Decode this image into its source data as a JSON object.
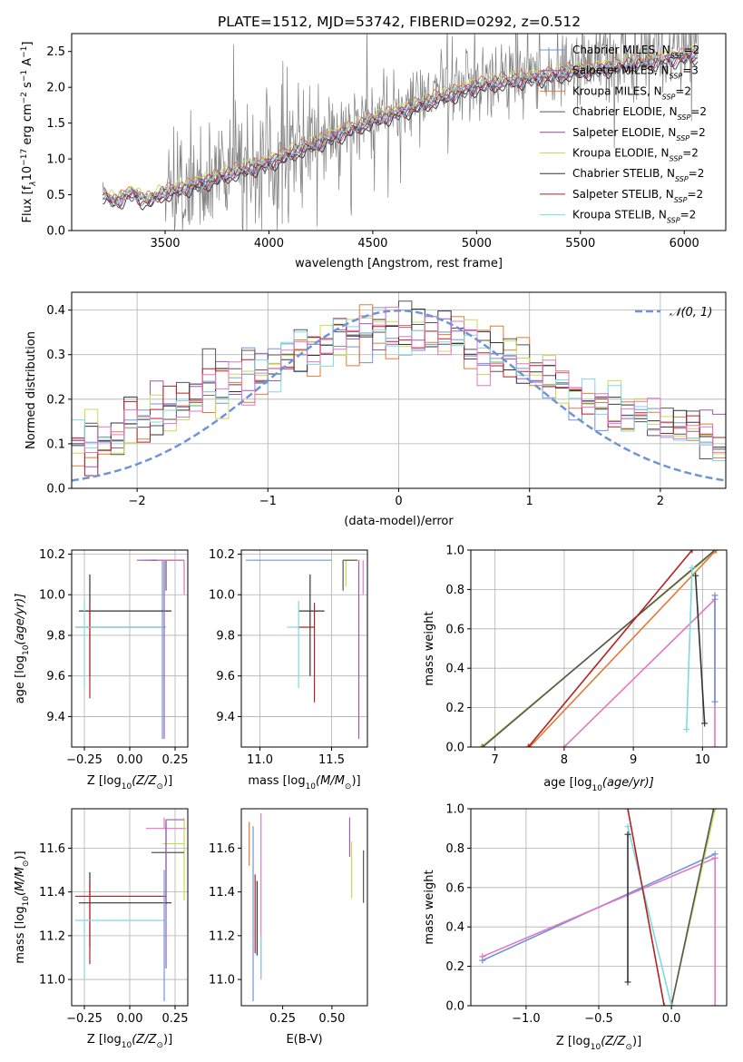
{
  "figure": {
    "title": "PLATE=1512, MJD=53742, FIBERID=0292, z=0.512"
  },
  "colors": {
    "chabrier_miles": "#6f95d8",
    "salpeter_miles": "#9b59b6",
    "kroupa_miles": "#e07b39",
    "chabrier_elodie": "#555555",
    "salpeter_elodie": "#8e44ad",
    "kroupa_elodie": "#c8dc52",
    "chabrier_stelib": "#333333",
    "salpeter_stelib": "#b22222",
    "kroupa_stelib": "#80d8e0",
    "pink": "#e377c2",
    "data": "#808080",
    "normal": "#6f95d8"
  },
  "chart_data": [
    {
      "id": "spectrum",
      "type": "line",
      "xlabel": "wavelength [Angstrom, rest frame]",
      "ylabel": "Flux [f",
      "ylabel_tail": "10",
      "ylabel_exp": "−17",
      "ylabel_unit": " erg cm",
      "ylabel_unit_exp1": "−2",
      "ylabel_unit2": " s",
      "ylabel_unit_exp2": "−1",
      "ylabel_unit3": " A",
      "ylabel_unit_exp3": "−1",
      "ylabel_end": "]",
      "xlim": [
        3050,
        6200
      ],
      "ylim": [
        0,
        2.75
      ],
      "xticks": [
        3500,
        4000,
        4500,
        5000,
        5500,
        6000
      ],
      "yticks": [
        0.0,
        0.5,
        1.0,
        1.5,
        2.0,
        2.5
      ],
      "data_range": [
        3200,
        6070
      ],
      "legend_position": "upper right",
      "legend": [
        {
          "label": "Chabrier MILES, N",
          "sub": "SSP",
          "tail": "=2",
          "color_key": "chabrier_miles"
        },
        {
          "label": "Salpeter MILES, N",
          "sub": "SSP",
          "tail": "=3",
          "color_key": "salpeter_miles"
        },
        {
          "label": "Kroupa MILES, N",
          "sub": "SSP",
          "tail": "=2",
          "color_key": "kroupa_miles"
        },
        {
          "label": "Chabrier ELODIE, N",
          "sub": "SSP",
          "tail": "=2",
          "color_key": "chabrier_elodie"
        },
        {
          "label": "Salpeter ELODIE, N",
          "sub": "SSP",
          "tail": "=2",
          "color_key": "salpeter_elodie"
        },
        {
          "label": "Kroupa ELODIE, N",
          "sub": "SSP",
          "tail": "=2",
          "color_key": "kroupa_elodie"
        },
        {
          "label": "Chabrier STELIB, N",
          "sub": "SSP",
          "tail": "=2",
          "color_key": "chabrier_stelib"
        },
        {
          "label": "Salpeter STELIB, N",
          "sub": "SSP",
          "tail": "=2",
          "color_key": "salpeter_stelib"
        },
        {
          "label": "Kroupa STELIB, N",
          "sub": "SSP",
          "tail": "=2",
          "color_key": "kroupa_stelib"
        }
      ]
    },
    {
      "id": "residuals",
      "type": "histogram",
      "xlabel": "(data-model)/error",
      "ylabel": "Normed distribution",
      "xlim": [
        -2.5,
        2.5
      ],
      "ylim": [
        0,
        0.44
      ],
      "xticks": [
        -2,
        -1,
        0,
        1,
        2
      ],
      "yticks": [
        0.0,
        0.1,
        0.2,
        0.3,
        0.4
      ],
      "grid": true,
      "legend_position": "upper right",
      "legend_label": "𝒩(0, 1)",
      "approx_bin_count": 50
    },
    {
      "id": "age_vs_Z",
      "type": "error_bars",
      "xlabel": "Z [log",
      "xlabel_sub": "10",
      "xlabel_tail": "(Z/Z",
      "xlabel_end": ")]",
      "ylabel": "age  [log",
      "ylabel_sub": "10",
      "ylabel_tail": "(age/yr)]",
      "xlim": [
        -0.32,
        0.32
      ],
      "ylim": [
        9.25,
        10.22
      ],
      "xticks": [
        -0.25,
        0.0,
        0.25
      ],
      "yticks": [
        9.4,
        9.6,
        9.8,
        10.0,
        10.2
      ],
      "grid": true,
      "points": [
        {
          "x": 0.18,
          "xerr": [
            0.1,
            0.12
          ],
          "y": 10.17,
          "yerr": [
            0.88,
            0.0
          ],
          "color_key": "chabrier_miles"
        },
        {
          "x": 0.3,
          "xerr": [
            0.12,
            0.0
          ],
          "y": 10.17,
          "yerr": [
            0.15,
            0.0
          ],
          "color_key": "kroupa_elodie"
        },
        {
          "x": 0.2,
          "xerr": [
            0.08,
            0.1
          ],
          "y": 10.17,
          "yerr": [
            0.15,
            0.0
          ],
          "color_key": "chabrier_elodie"
        },
        {
          "x": -0.22,
          "xerr": [
            0.06,
            0.45
          ],
          "y": 9.92,
          "yerr": [
            0.32,
            0.18
          ],
          "color_key": "chabrier_stelib"
        },
        {
          "x": -0.22,
          "xerr": [
            0.08,
            0.42
          ],
          "y": 9.84,
          "yerr": [
            0.35,
            0.12
          ],
          "color_key": "salpeter_stelib"
        },
        {
          "x": -0.25,
          "xerr": [
            0.05,
            0.45
          ],
          "y": 9.84,
          "yerr": [
            0.3,
            0.13
          ],
          "color_key": "kroupa_stelib"
        },
        {
          "x": 0.19,
          "xerr": [
            0.15,
            0.0
          ],
          "y": 10.17,
          "yerr": [
            0.88,
            0.0
          ],
          "color_key": "salpeter_miles"
        },
        {
          "x": 0.3,
          "xerr": [
            0.15,
            0.0
          ],
          "y": 10.17,
          "yerr": [
            0.17,
            0.0
          ],
          "color_key": "pink"
        }
      ]
    },
    {
      "id": "age_vs_mass",
      "type": "error_bars",
      "xlabel": "mass [log",
      "xlabel_sub": "10",
      "xlabel_tail": "(M/M",
      "xlabel_end": ")]",
      "xlim": [
        10.87,
        11.75
      ],
      "ylim": [
        9.25,
        10.22
      ],
      "xticks": [
        11.0,
        11.5
      ],
      "yticks": [
        9.4,
        9.6,
        9.8,
        10.0,
        10.2
      ],
      "grid": true,
      "points": [
        {
          "x": 11.35,
          "xerr": [
            0.08,
            0.1
          ],
          "y": 9.92,
          "yerr": [
            0.32,
            0.18
          ],
          "color_key": "chabrier_stelib"
        },
        {
          "x": 11.38,
          "xerr": [
            0.12,
            0.0
          ],
          "y": 9.84,
          "yerr": [
            0.37,
            0.12
          ],
          "color_key": "salpeter_stelib"
        },
        {
          "x": 11.27,
          "xerr": [
            0.08,
            0.0
          ],
          "y": 9.84,
          "yerr": [
            0.3,
            0.13
          ],
          "color_key": "kroupa_stelib"
        },
        {
          "x": 11.69,
          "xerr": [
            0.0,
            0.0
          ],
          "y": 10.17,
          "yerr": [
            0.88,
            0.0
          ],
          "color_key": "salpeter_miles"
        },
        {
          "x": 11.5,
          "xerr": [
            0.6,
            0.0
          ],
          "y": 10.17,
          "yerr": [
            0.0,
            0.0
          ],
          "color_key": "chabrier_miles"
        },
        {
          "x": 11.6,
          "xerr": [
            0.0,
            0.1
          ],
          "y": 10.17,
          "yerr": [
            0.13,
            0.0
          ],
          "color_key": "kroupa_elodie"
        },
        {
          "x": 11.58,
          "xerr": [
            0.0,
            0.1
          ],
          "y": 10.17,
          "yerr": [
            0.15,
            0.0
          ],
          "color_key": "chabrier_elodie"
        },
        {
          "x": 11.72,
          "xerr": [
            0.0,
            0.0
          ],
          "y": 10.17,
          "yerr": [
            0.17,
            0.0
          ],
          "color_key": "pink"
        }
      ]
    },
    {
      "id": "mass_weight_vs_age",
      "type": "line",
      "xlabel": "age  [log",
      "xlabel_sub": "10",
      "xlabel_tail": "(age/yr)]",
      "ylabel": "mass weight",
      "xlim": [
        6.65,
        10.35
      ],
      "ylim": [
        0,
        1
      ],
      "xticks": [
        7,
        8,
        9,
        10
      ],
      "yticks": [
        0.0,
        0.2,
        0.4,
        0.6,
        0.8,
        1.0
      ],
      "grid": true,
      "series": [
        {
          "color_key": "kroupa_elodie",
          "x": [
            6.8,
            10.2
          ],
          "y": [
            0.0,
            1.0
          ]
        },
        {
          "color_key": "chabrier_elodie",
          "x": [
            6.82,
            10.18
          ],
          "y": [
            0.0,
            1.0
          ]
        },
        {
          "color_key": "kroupa_miles",
          "x": [
            7.5,
            10.2
          ],
          "y": [
            0.0,
            1.0
          ]
        },
        {
          "color_key": "salpeter_stelib",
          "x": [
            7.48,
            9.85
          ],
          "y": [
            0.0,
            1.0
          ]
        },
        {
          "color_key": "pink",
          "x": [
            8.0,
            10.18,
            10.18
          ],
          "y": [
            0.0,
            0.75,
            0.0
          ]
        },
        {
          "color_key": "chabrier_miles",
          "x": [
            10.18,
            10.18
          ],
          "y": [
            0.23,
            0.77
          ]
        },
        {
          "color_key": "chabrier_stelib",
          "x": [
            9.9,
            10.03
          ],
          "y": [
            0.87,
            0.12
          ]
        },
        {
          "color_key": "kroupa_stelib",
          "x": [
            9.77,
            9.85
          ],
          "y": [
            0.09,
            0.91
          ]
        }
      ]
    },
    {
      "id": "mass_vs_Z",
      "type": "error_bars",
      "xlabel": "Z [log",
      "xlabel_sub": "10",
      "xlabel_tail": "(Z/Z",
      "xlabel_end": ")]",
      "ylabel": "mass [log",
      "ylabel_sub": "10",
      "ylabel_tail": "(M/M",
      "ylabel_end": ")]",
      "xlim": [
        -0.32,
        0.32
      ],
      "ylim": [
        10.88,
        11.78
      ],
      "xticks": [
        -0.25,
        0.0,
        0.25
      ],
      "yticks": [
        11.0,
        11.2,
        11.4,
        11.6
      ],
      "grid": true,
      "points": [
        {
          "x": 0.19,
          "xerr": [
            0.1,
            0.12
          ],
          "y": 11.69,
          "yerr": [
            0.0,
            0.05
          ],
          "color_key": "pink"
        },
        {
          "x": 0.3,
          "xerr": [
            0.12,
            0.0
          ],
          "y": 11.62,
          "yerr": [
            0.26,
            0.12
          ],
          "color_key": "kroupa_elodie"
        },
        {
          "x": 0.2,
          "xerr": [
            0.08,
            0.1
          ],
          "y": 11.58,
          "yerr": [
            0.23,
            0.14
          ],
          "color_key": "chabrier_elodie"
        },
        {
          "x": 0.2,
          "xerr": [
            0.0,
            0.1
          ],
          "y": 11.73,
          "yerr": [
            0.68,
            0.0
          ],
          "color_key": "salpeter_miles"
        },
        {
          "x": -0.22,
          "xerr": [
            0.06,
            0.45
          ],
          "y": 11.35,
          "yerr": [
            0.2,
            0.14
          ],
          "color_key": "chabrier_stelib"
        },
        {
          "x": -0.22,
          "xerr": [
            0.08,
            0.42
          ],
          "y": 11.38,
          "yerr": [
            0.31,
            0.06
          ],
          "color_key": "salpeter_stelib"
        },
        {
          "x": -0.25,
          "xerr": [
            0.05,
            0.45
          ],
          "y": 11.27,
          "yerr": [
            0.27,
            0.0
          ],
          "color_key": "kroupa_stelib"
        },
        {
          "x": 0.19,
          "xerr": [
            0.0,
            0.0
          ],
          "y": 11.5,
          "yerr": [
            0.6,
            0.0
          ],
          "color_key": "chabrier_miles"
        }
      ]
    },
    {
      "id": "mass_vs_EBV",
      "type": "error_bars",
      "xlabel": "E(B-V)",
      "xlim": [
        0.04,
        0.68
      ],
      "ylim": [
        10.88,
        11.78
      ],
      "xticks": [
        0.25,
        0.5
      ],
      "yticks": [
        11.0,
        11.2,
        11.4,
        11.6
      ],
      "grid": false,
      "points": [
        {
          "x": 0.08,
          "y": 11.62,
          "yerr": [
            0.1,
            0.1
          ],
          "color_key": "kroupa_miles"
        },
        {
          "x": 0.1,
          "y": 11.3,
          "yerr": [
            0.4,
            0.4
          ],
          "color_key": "chabrier_miles"
        },
        {
          "x": 0.11,
          "y": 11.3,
          "yerr": [
            0.18,
            0.18
          ],
          "color_key": "salpeter_stelib"
        },
        {
          "x": 0.12,
          "y": 11.28,
          "yerr": [
            0.17,
            0.17
          ],
          "color_key": "chabrier_stelib"
        },
        {
          "x": 0.14,
          "y": 11.38,
          "yerr": [
            0.38,
            0.38
          ],
          "color_key": "pink"
        },
        {
          "x": 0.14,
          "y": 11.1,
          "yerr": [
            0.1,
            0.1
          ],
          "color_key": "kroupa_stelib"
        },
        {
          "x": 0.59,
          "y": 11.65,
          "yerr": [
            0.09,
            0.09
          ],
          "color_key": "salpeter_miles"
        },
        {
          "x": 0.6,
          "y": 11.5,
          "yerr": [
            0.13,
            0.13
          ],
          "color_key": "kroupa_elodie"
        },
        {
          "x": 0.66,
          "y": 11.47,
          "yerr": [
            0.12,
            0.12
          ],
          "color_key": "chabrier_elodie"
        }
      ]
    },
    {
      "id": "mass_weight_vs_Z",
      "type": "line",
      "xlabel": "Z [log",
      "xlabel_sub": "10",
      "xlabel_tail": "(Z/Z",
      "xlabel_end": ")]",
      "ylabel": "mass weight",
      "xlim": [
        -1.38,
        0.38
      ],
      "ylim": [
        0,
        1
      ],
      "xticks": [
        -1.0,
        -0.5,
        0.0
      ],
      "yticks": [
        0.0,
        0.2,
        0.4,
        0.6,
        0.8,
        1.0
      ],
      "grid": true,
      "series": [
        {
          "color_key": "chabrier_miles",
          "x": [
            -1.3,
            0.3
          ],
          "y": [
            0.23,
            0.77
          ]
        },
        {
          "color_key": "pink",
          "x": [
            -1.3,
            0.3,
            0.3
          ],
          "y": [
            0.25,
            0.75,
            0.0
          ]
        },
        {
          "color_key": "kroupa_elodie",
          "x": [
            0.0,
            0.3
          ],
          "y": [
            0.0,
            1.0
          ]
        },
        {
          "color_key": "chabrier_elodie",
          "x": [
            0.0,
            0.29
          ],
          "y": [
            0.0,
            1.0
          ]
        },
        {
          "color_key": "kroupa_stelib",
          "x": [
            -0.3,
            0.0
          ],
          "y": [
            0.91,
            0.0
          ]
        },
        {
          "color_key": "salpeter_stelib",
          "x": [
            -0.3,
            -0.05
          ],
          "y": [
            1.0,
            0.0
          ]
        },
        {
          "color_key": "chabrier_stelib",
          "x": [
            -0.3,
            -0.3
          ],
          "y": [
            0.12,
            0.87
          ]
        }
      ]
    }
  ]
}
